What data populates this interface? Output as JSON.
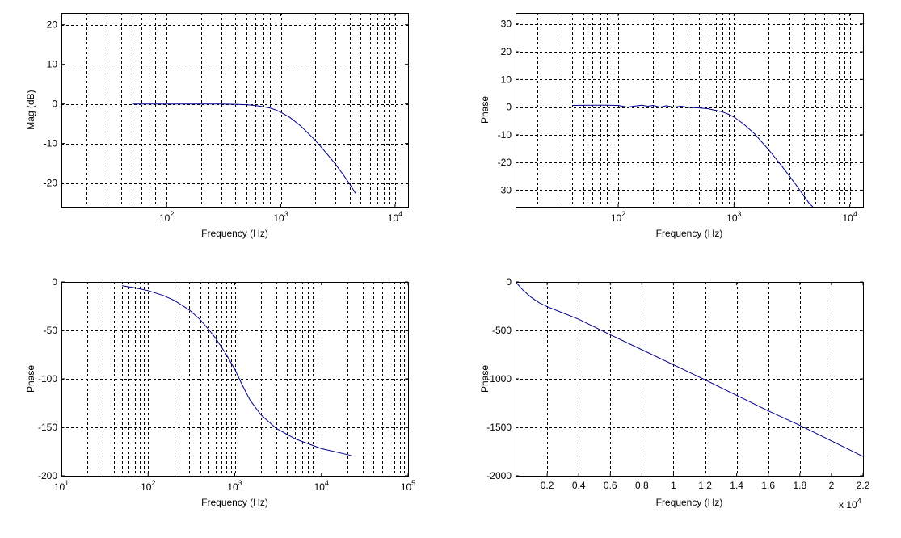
{
  "figure": {
    "background": "#ffffff",
    "line_color": "#00008b",
    "grid_color": "#000000"
  },
  "chart_data": [
    {
      "type": "line",
      "xscale": "log",
      "xlim": [
        12,
        13000
      ],
      "ylim": [
        -26,
        23
      ],
      "xticks": [
        100,
        1000,
        10000
      ],
      "xtick_labels": [
        {
          "base": "10",
          "exp": "2"
        },
        {
          "base": "10",
          "exp": "3"
        },
        {
          "base": "10",
          "exp": "4"
        }
      ],
      "yticks": [
        -20,
        -10,
        0,
        10,
        20
      ],
      "ytick_labels": [
        "-20",
        "-10",
        "0",
        "10",
        "20"
      ],
      "xlabel": "Frequency (Hz)",
      "ylabel": "Mag (dB)",
      "grid": true,
      "series": [
        {
          "x": [
            50,
            100,
            200,
            300,
            400,
            500,
            600,
            700,
            800,
            900,
            1000,
            1200,
            1500,
            2000,
            2500,
            3000,
            3500,
            4000,
            4500
          ],
          "values": [
            0,
            0,
            0,
            0,
            -0.1,
            -0.2,
            -0.4,
            -0.7,
            -1.0,
            -1.5,
            -2.1,
            -3.4,
            -5.6,
            -9.2,
            -12.4,
            -15.2,
            -17.8,
            -20.2,
            -22.6
          ]
        }
      ]
    },
    {
      "type": "line",
      "xscale": "log",
      "xlim": [
        13,
        13000
      ],
      "ylim": [
        -36,
        34
      ],
      "xticks": [
        100,
        1000,
        10000
      ],
      "xtick_labels": [
        {
          "base": "10",
          "exp": "2"
        },
        {
          "base": "10",
          "exp": "3"
        },
        {
          "base": "10",
          "exp": "4"
        }
      ],
      "yticks": [
        -30,
        -20,
        -10,
        0,
        10,
        20,
        30
      ],
      "ytick_labels": [
        "-30",
        "-20",
        "-10",
        "0",
        "10",
        "20",
        "30"
      ],
      "xlabel": "Frequency (Hz)",
      "ylabel": "Phase",
      "grid": true,
      "series": [
        {
          "x": [
            40,
            60,
            80,
            100,
            120,
            140,
            160,
            180,
            200,
            230,
            260,
            300,
            350,
            400,
            450,
            500,
            600,
            700,
            800,
            900,
            1000,
            1200,
            1500,
            2000,
            2500,
            3000,
            3500,
            4000,
            4500,
            4800
          ],
          "values": [
            0.6,
            0.7,
            0.7,
            0.6,
            0,
            0.4,
            0.7,
            0.3,
            0.6,
            0,
            0.5,
            0,
            0.3,
            -0.1,
            -0.2,
            -0.3,
            -0.6,
            -1.2,
            -1.8,
            -2.6,
            -3.6,
            -6.0,
            -9.6,
            -15.5,
            -20.5,
            -24.8,
            -28.6,
            -32.0,
            -35.0,
            -36.0
          ]
        }
      ]
    },
    {
      "type": "line",
      "xscale": "log",
      "xlim": [
        10,
        100000
      ],
      "ylim": [
        -200,
        0
      ],
      "xticks": [
        10,
        100,
        1000,
        10000,
        100000
      ],
      "xtick_labels": [
        {
          "base": "10",
          "exp": "1"
        },
        {
          "base": "10",
          "exp": "2"
        },
        {
          "base": "10",
          "exp": "3"
        },
        {
          "base": "10",
          "exp": "4"
        },
        {
          "base": "10",
          "exp": "5"
        }
      ],
      "yticks": [
        -200,
        -150,
        -100,
        -50,
        0
      ],
      "ytick_labels": [
        "-200",
        "-150",
        "-100",
        "-50",
        "0"
      ],
      "xlabel": "Frequency (Hz)",
      "ylabel": "Phase",
      "grid": true,
      "series": [
        {
          "x": [
            50,
            70,
            100,
            150,
            200,
            300,
            400,
            500,
            600,
            700,
            800,
            900,
            1000,
            1200,
            1500,
            2000,
            3000,
            5000,
            10000,
            22000
          ],
          "values": [
            -4,
            -6,
            -9,
            -14,
            -19,
            -29,
            -39,
            -49,
            -58,
            -67,
            -75,
            -83,
            -90,
            -105,
            -122,
            -137,
            -151,
            -162,
            -172,
            -179
          ]
        }
      ]
    },
    {
      "type": "line",
      "xscale": "linear",
      "xlim": [
        0,
        22000
      ],
      "ylim": [
        -2000,
        0
      ],
      "xticks": [
        2000,
        4000,
        6000,
        8000,
        10000,
        12000,
        14000,
        16000,
        18000,
        20000,
        22000
      ],
      "xtick_labels": [
        "0.2",
        "0.4",
        "0.6",
        "0.8",
        "1",
        "1.2",
        "1.4",
        "1.6",
        "1.8",
        "2",
        "2.2"
      ],
      "x_multiplier": {
        "base": "x 10",
        "exp": "4"
      },
      "yticks": [
        -2000,
        -1500,
        -1000,
        -500,
        0
      ],
      "ytick_labels": [
        "-2000",
        "-1500",
        "-1000",
        "-500",
        "0"
      ],
      "xlabel": "Frequency (Hz)",
      "ylabel": "Phase",
      "grid": true,
      "series": [
        {
          "x": [
            0,
            500,
            1000,
            1500,
            2000,
            3000,
            4000,
            6000,
            8000,
            10000,
            12000,
            14000,
            16000,
            18000,
            20000,
            22000
          ],
          "values": [
            0,
            -90,
            -160,
            -215,
            -255,
            -320,
            -385,
            -545,
            -700,
            -855,
            -1010,
            -1170,
            -1330,
            -1480,
            -1640,
            -1800
          ]
        }
      ]
    }
  ]
}
